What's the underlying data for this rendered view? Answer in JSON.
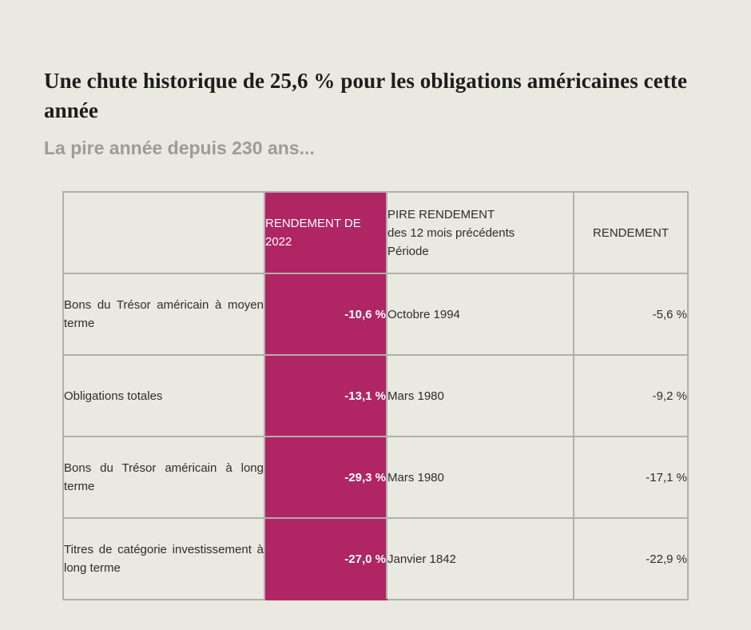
{
  "page": {
    "title": "Une chute historique de 25,6 % pour les obligations américaines cette année",
    "subtitle": "La pire année depuis 230 ans..."
  },
  "colors": {
    "background": "#e9e8e1",
    "accent": "#b02564",
    "table_border": "#b1afa9",
    "title_text": "#1d1d1b",
    "subtitle_text": "#9c9c94",
    "body_text": "#2d2d2b",
    "accent_cell_text": "#ffffff"
  },
  "chart_data": {
    "type": "table",
    "title": "Une chute historique de 25,6 % pour les obligations américaines cette année",
    "subtitle": "La pire année depuis 230 ans...",
    "headers": {
      "label_column": "",
      "return_2022": "RENDEMENT DE 2022",
      "worst_line1": "PIRE RENDEMENT",
      "worst_line2": "des 12 mois précédents",
      "worst_line3": "Période",
      "return_column": "RENDEMENT"
    },
    "rows": [
      {
        "label": "Bons du Trésor américain à moyen terme",
        "return_2022": "-10,6 %",
        "worst_period": "Octobre 1994",
        "return": "-5,6 %"
      },
      {
        "label": "Obligations totales",
        "return_2022": "-13,1 %",
        "worst_period": "Mars 1980",
        "return": "-9,2 %"
      },
      {
        "label": "Bons du Trésor américain à long terme",
        "return_2022": "-29,3 %",
        "worst_period": "Mars 1980",
        "return": "-17,1 %"
      },
      {
        "label": "Titres de catégorie investissement à long terme",
        "return_2022": "-27,0 %",
        "worst_period": "Janvier 1842",
        "return": "-22,9 %"
      }
    ]
  }
}
